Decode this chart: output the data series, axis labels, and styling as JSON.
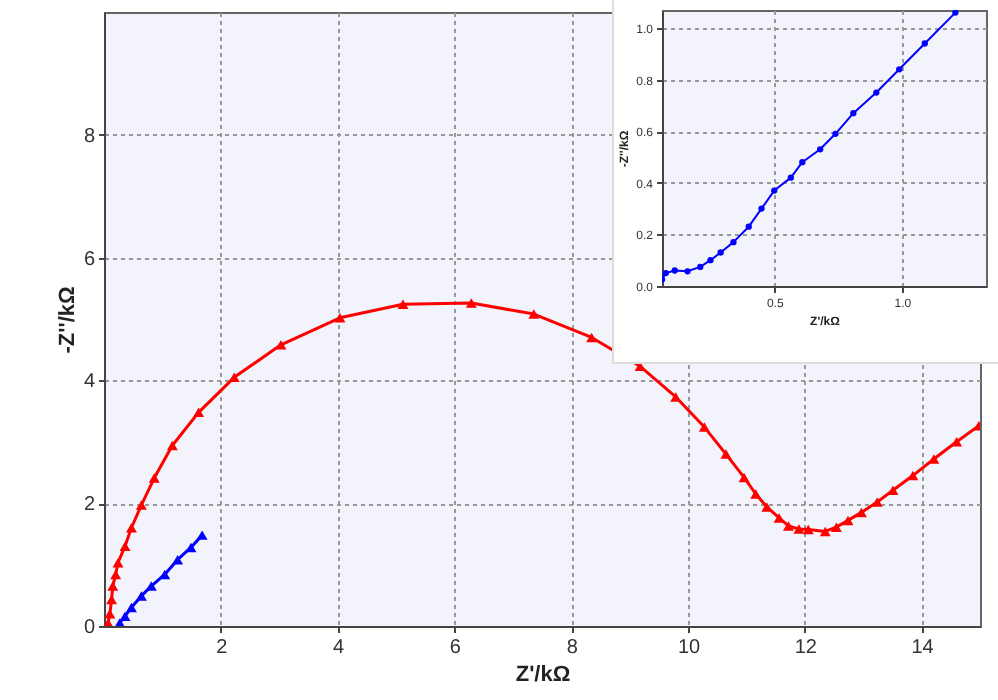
{
  "chart_data": [
    {
      "type": "line",
      "xlabel": "Z'/kΩ",
      "ylabel": "-Z''/kΩ",
      "xlim": [
        0,
        15
      ],
      "ylim": [
        0,
        10
      ],
      "xticks": [
        2,
        4,
        6,
        8,
        10,
        12,
        14
      ],
      "yticks": [
        0,
        2,
        4,
        6,
        8
      ],
      "grid": true,
      "marker": "triangle",
      "line_style": "solid",
      "series": [
        {
          "color": "#ff0000",
          "x": [
            0.07,
            0.1,
            0.13,
            0.15,
            0.2,
            0.24,
            0.36,
            0.47,
            0.64,
            0.86,
            1.17,
            1.62,
            2.23,
            3.03,
            4.04,
            5.12,
            6.29,
            7.36,
            8.35,
            9.18,
            9.79,
            10.28,
            10.65,
            10.96,
            11.16,
            11.35,
            11.56,
            11.72,
            11.9,
            12.06,
            12.35,
            12.54,
            12.74,
            12.97,
            13.24,
            13.51,
            13.85,
            14.21,
            14.6,
            14.98
          ],
          "values": [
            0.05,
            0.2,
            0.43,
            0.65,
            0.84,
            1.03,
            1.3,
            1.6,
            1.97,
            2.41,
            2.94,
            3.48,
            4.05,
            4.58,
            5.02,
            5.24,
            5.26,
            5.08,
            4.7,
            4.23,
            3.73,
            3.24,
            2.8,
            2.42,
            2.15,
            1.94,
            1.76,
            1.63,
            1.58,
            1.57,
            1.54,
            1.61,
            1.72,
            1.85,
            2.02,
            2.21,
            2.45,
            2.72,
            3.0,
            3.26
          ]
        },
        {
          "color": "#0000ff",
          "x": [
            0.27,
            0.36,
            0.47,
            0.64,
            0.81,
            1.04,
            1.26,
            1.49,
            1.68
          ],
          "values": [
            0.05,
            0.16,
            0.3,
            0.49,
            0.65,
            0.84,
            1.08,
            1.28,
            1.48
          ]
        }
      ]
    },
    {
      "type": "line",
      "xlabel": "Z'/kΩ",
      "ylabel": "-Z''/kΩ",
      "xlim": [
        0.06,
        1.33
      ],
      "ylim": [
        0,
        1.07
      ],
      "xticks": [
        {
          "value": 0.5,
          "label": "0.5"
        },
        {
          "value": 1,
          "label": "1.0"
        }
      ],
      "yticks": [
        {
          "value": 0,
          "label": "0.0"
        },
        {
          "value": 0.2,
          "label": "0.2"
        },
        {
          "value": 0.4,
          "label": "0.4"
        },
        {
          "value": 0.6,
          "label": "0.6"
        },
        {
          "value": 0.8,
          "label": "0.8"
        },
        {
          "value": 1,
          "label": "1.0"
        }
      ],
      "grid": true,
      "marker": "circle",
      "line_style": "solid",
      "series": [
        {
          "color": "#0000ff",
          "x": [
            0.06,
            0.075,
            0.11,
            0.16,
            0.21,
            0.25,
            0.29,
            0.34,
            0.4,
            0.45,
            0.5,
            0.565,
            0.61,
            0.68,
            0.74,
            0.81,
            0.9,
            0.99,
            1.09,
            1.21
          ],
          "values": [
            0.025,
            0.05,
            0.06,
            0.057,
            0.074,
            0.1,
            0.13,
            0.17,
            0.23,
            0.3,
            0.37,
            0.42,
            0.48,
            0.53,
            0.59,
            0.67,
            0.75,
            0.84,
            0.94,
            1.06
          ]
        }
      ]
    }
  ]
}
